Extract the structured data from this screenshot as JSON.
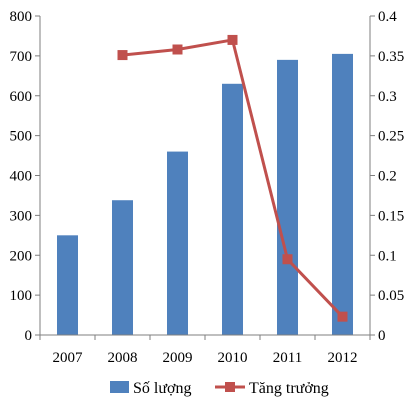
{
  "chart_data": {
    "type": "bar",
    "categories": [
      "2007",
      "2008",
      "2009",
      "2010",
      "2011",
      "2012"
    ],
    "series": [
      {
        "name": "Số lượng",
        "type": "bar",
        "axis": "left",
        "color": "#4f81bd",
        "values": [
          250,
          338,
          460,
          630,
          690,
          705
        ]
      },
      {
        "name": "Tăng trưởng",
        "type": "line",
        "axis": "right",
        "color": "#c0504d",
        "values": [
          null,
          0.351,
          0.358,
          0.37,
          0.095,
          0.023
        ]
      }
    ],
    "left_axis": {
      "min": 0,
      "max": 800,
      "ticks": [
        0,
        100,
        200,
        300,
        400,
        500,
        600,
        700,
        800
      ]
    },
    "right_axis": {
      "min": 0,
      "max": 0.4,
      "ticks": [
        "0",
        "0.05",
        "0.1",
        "0.15",
        "0.2",
        "0.25",
        "0.3",
        "0.35",
        "0.4"
      ]
    },
    "grid": false,
    "legend_position": "bottom",
    "title": "",
    "xlabel": "",
    "ylabel": ""
  }
}
